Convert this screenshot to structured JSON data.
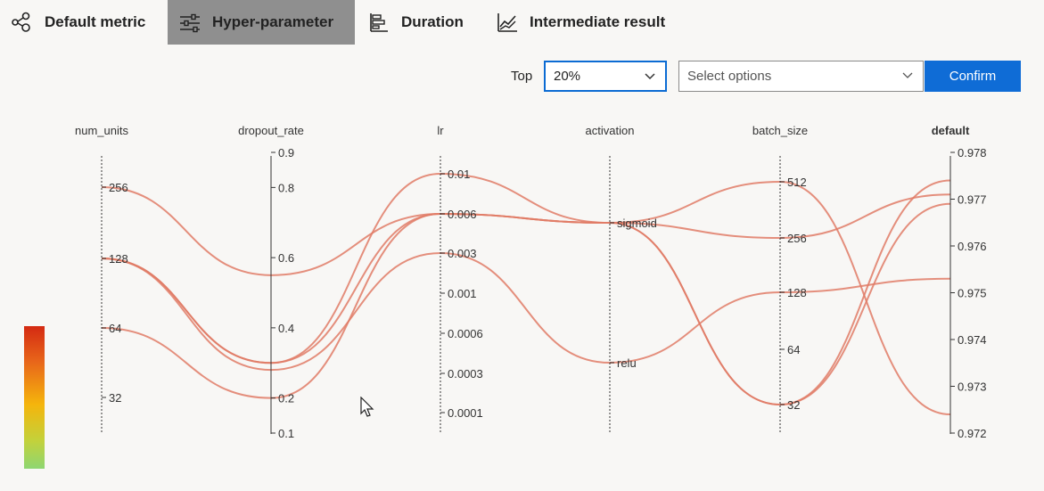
{
  "tabs": [
    {
      "label": "Default metric",
      "icon": "network-icon",
      "active": false
    },
    {
      "label": "Hyper-parameter",
      "icon": "sliders-icon",
      "active": true
    },
    {
      "label": "Duration",
      "icon": "bar-list-icon",
      "active": false
    },
    {
      "label": "Intermediate result",
      "icon": "line-chart-icon",
      "active": false
    }
  ],
  "filter": {
    "top_label": "Top",
    "top_value": "20%",
    "options_placeholder": "Select options",
    "confirm_label": "Confirm"
  },
  "colors": {
    "accent": "#0f6cd6",
    "line": "#e07b66",
    "gradient": [
      "#d42a12",
      "#e8661a",
      "#f5b50c",
      "#c4d13a",
      "#8ed672"
    ]
  },
  "chart_data": {
    "type": "parallel-coordinates",
    "axes": [
      {
        "name": "num_units",
        "ticks": [
          "256",
          "128",
          "64",
          "32"
        ],
        "scale": "categorical"
      },
      {
        "name": "dropout_rate",
        "ticks": [
          "0.9",
          "0.8",
          "0.6",
          "0.4",
          "0.2",
          "0.1"
        ],
        "range": [
          0.1,
          0.9
        ]
      },
      {
        "name": "lr",
        "ticks": [
          "0.01",
          "0.006",
          "0.003",
          "0.001",
          "0.0006",
          "0.0003",
          "0.0001"
        ],
        "scale": "log"
      },
      {
        "name": "activation",
        "ticks": [
          "sigmoid",
          "relu"
        ],
        "scale": "categorical"
      },
      {
        "name": "batch_size",
        "ticks": [
          "512",
          "256",
          "128",
          "64",
          "32"
        ],
        "scale": "categorical"
      },
      {
        "name": "default",
        "ticks": [
          "0.978",
          "0.977",
          "0.976",
          "0.975",
          "0.974",
          "0.973",
          "0.972"
        ],
        "range": [
          0.972,
          0.978
        ],
        "bold": true
      }
    ],
    "lines": [
      {
        "num_units": "256",
        "dropout_rate": 0.55,
        "lr": "0.006",
        "activation": "sigmoid",
        "batch_size": "256",
        "default": 0.9771
      },
      {
        "num_units": "128",
        "dropout_rate": 0.3,
        "lr": "0.01",
        "activation": "sigmoid",
        "batch_size": "32",
        "default": 0.9769
      },
      {
        "num_units": "128",
        "dropout_rate": 0.3,
        "lr": "0.006",
        "activation": "sigmoid",
        "batch_size": "512",
        "default": 0.9724
      },
      {
        "num_units": "128",
        "dropout_rate": 0.28,
        "lr": "0.003",
        "activation": "relu",
        "batch_size": "128",
        "default": 0.9753
      },
      {
        "num_units": "64",
        "dropout_rate": 0.2,
        "lr": "0.006",
        "activation": "sigmoid",
        "batch_size": "32",
        "default": 0.9774
      }
    ]
  }
}
